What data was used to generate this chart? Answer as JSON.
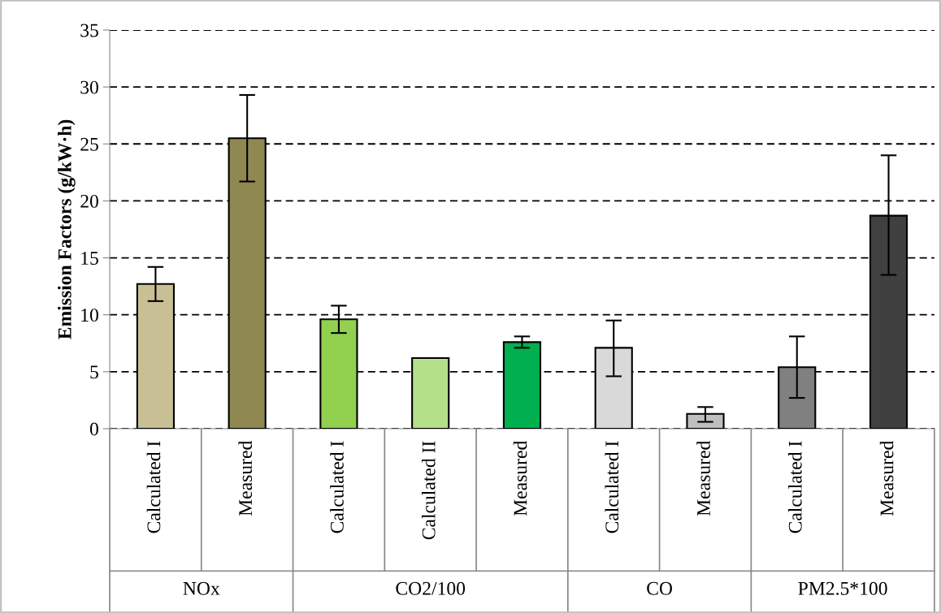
{
  "chart_data": {
    "type": "bar",
    "ylabel": "Emission Factors (g/kW·h)",
    "categories": [
      "Calculated I",
      "Measured",
      "Calculated I",
      "Calculated II",
      "Measured",
      "Calculated I",
      "Measured",
      "Calculated I",
      "Measured"
    ],
    "values": [
      12.7,
      25.5,
      9.6,
      6.2,
      7.6,
      7.1,
      1.3,
      5.4,
      18.7
    ],
    "errors": [
      [
        11.2,
        14.2
      ],
      [
        21.7,
        29.3
      ],
      [
        8.4,
        10.8
      ],
      null,
      [
        7.1,
        8.1
      ],
      [
        4.6,
        9.5
      ],
      [
        0.6,
        1.9
      ],
      [
        2.7,
        8.1
      ],
      [
        13.5,
        24.0
      ]
    ],
    "colors": [
      "#c8bf95",
      "#8f8850",
      "#92d050",
      "#b5e08a",
      "#00b050",
      "#d9d9d9",
      "#bfbfbf",
      "#808080",
      "#404040"
    ],
    "annotations": [
      "NOx",
      "CO2/100",
      "CO",
      "PM2.5*100"
    ],
    "ylim": [
      0,
      35
    ],
    "yticks": [
      0,
      5,
      10,
      15,
      20,
      25,
      30,
      35
    ],
    "grid": "y"
  }
}
